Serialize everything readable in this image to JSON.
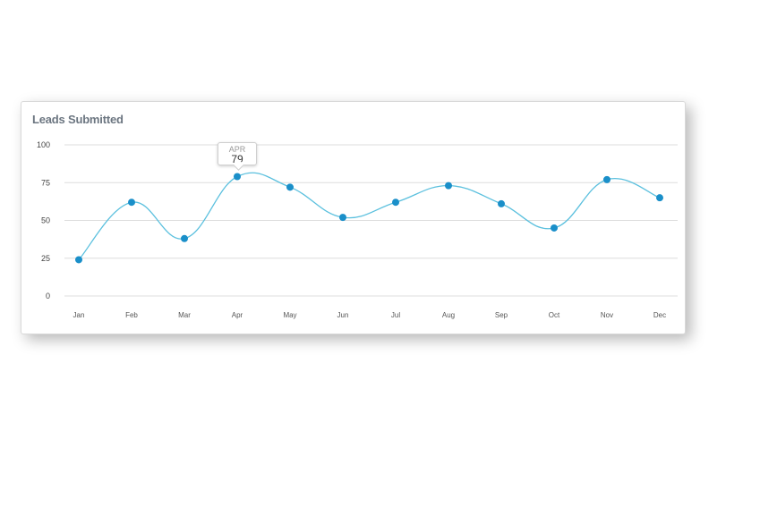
{
  "card": {
    "title": "Leads Submitted"
  },
  "tooltip": {
    "month": "APR",
    "value": "79"
  },
  "colors": {
    "line": "#5bc0de",
    "point": "#1a8fc9",
    "grid": "#dddddd"
  },
  "chart_data": {
    "type": "line",
    "title": "Leads Submitted",
    "categories": [
      "Jan",
      "Feb",
      "Mar",
      "Apr",
      "May",
      "Jun",
      "Jul",
      "Aug",
      "Sep",
      "Oct",
      "Nov",
      "Dec"
    ],
    "series": [
      {
        "values": [
          24,
          62,
          38,
          79,
          72,
          52,
          62,
          73,
          61,
          45,
          77,
          65
        ]
      }
    ],
    "ylim": [
      0,
      100
    ],
    "yticks": [
      "100",
      "75",
      "50",
      "25",
      "0"
    ],
    "grid": true,
    "smooth": true
  }
}
